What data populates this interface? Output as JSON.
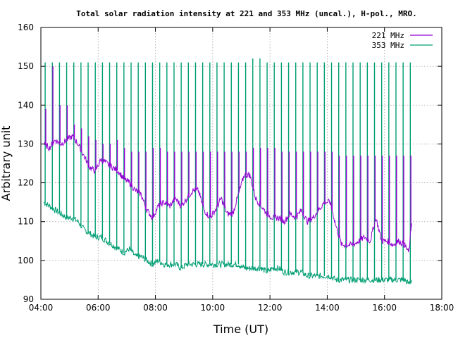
{
  "chart_data": {
    "type": "line",
    "title": "Total solar radiation intensity at 221 and 353 MHz (uncal.), H-pol., MRO.",
    "xlabel": "Time (UT)",
    "ylabel": "Arbitrary unit",
    "xlim": [
      4,
      18
    ],
    "ylim": [
      90,
      160
    ],
    "x_ticks": [
      {
        "value": 4,
        "label": "04:00"
      },
      {
        "value": 6,
        "label": "06:00"
      },
      {
        "value": 8,
        "label": "08:00"
      },
      {
        "value": 10,
        "label": "10:00"
      },
      {
        "value": 12,
        "label": "12:00"
      },
      {
        "value": 14,
        "label": "14:00"
      },
      {
        "value": 16,
        "label": "16:00"
      },
      {
        "value": 18,
        "label": "18:00"
      }
    ],
    "y_ticks": [
      {
        "value": 90,
        "label": "90"
      },
      {
        "value": 100,
        "label": "100"
      },
      {
        "value": 110,
        "label": "110"
      },
      {
        "value": 120,
        "label": "120"
      },
      {
        "value": 130,
        "label": "130"
      },
      {
        "value": 140,
        "label": "140"
      },
      {
        "value": 150,
        "label": "150"
      },
      {
        "value": 160,
        "label": "160"
      }
    ],
    "grid": true,
    "legend_position": "top-right",
    "spike_interval_hours": 0.25,
    "series": [
      {
        "name": "221 MHz",
        "color": "#9400d3",
        "x": [
          4.1,
          4.3,
          4.5,
          4.7,
          4.9,
          5.1,
          5.3,
          5.5,
          5.7,
          5.9,
          6.1,
          6.3,
          6.5,
          6.7,
          6.9,
          7.1,
          7.3,
          7.5,
          7.7,
          7.9,
          8.1,
          8.3,
          8.5,
          8.7,
          8.9,
          9.1,
          9.3,
          9.5,
          9.7,
          9.9,
          10.1,
          10.3,
          10.5,
          10.7,
          10.9,
          11.1,
          11.3,
          11.5,
          11.7,
          11.9,
          12.1,
          12.3,
          12.5,
          12.7,
          12.9,
          13.1,
          13.3,
          13.5,
          13.7,
          13.9,
          14.1,
          14.3,
          14.5,
          14.7,
          14.9,
          15.1,
          15.3,
          15.5,
          15.7,
          15.9,
          16.1,
          16.3,
          16.5,
          16.7,
          16.85,
          16.95
        ],
        "y": [
          130,
          129,
          131,
          130,
          131,
          132,
          130,
          127,
          124,
          123,
          126,
          125,
          124,
          123,
          121,
          120,
          118,
          117,
          113,
          111,
          114,
          115,
          114,
          116,
          114,
          116,
          118,
          118,
          113,
          111,
          113,
          116,
          112,
          112,
          117,
          122,
          122,
          116,
          114,
          112,
          111,
          111,
          110,
          112,
          111,
          113,
          110,
          111,
          113,
          115,
          115,
          109,
          104,
          104,
          104,
          105,
          106,
          105,
          111,
          105,
          105,
          104,
          105,
          104,
          102,
          110
        ],
        "spike_peaks": [
          139,
          150,
          140,
          140,
          135,
          134,
          132,
          131,
          130,
          130,
          131,
          129,
          128,
          128,
          128,
          129,
          129,
          128,
          128,
          128,
          128,
          128,
          128,
          128,
          128,
          128,
          128,
          128,
          128,
          129,
          129,
          129,
          129,
          128,
          128,
          128,
          128,
          128,
          128,
          128,
          128,
          127,
          127,
          127,
          127,
          127,
          127,
          127,
          127,
          127,
          127,
          127,
          127
        ]
      },
      {
        "name": "353 MHz",
        "color": "#009e73",
        "x": [
          4.1,
          4.3,
          4.5,
          4.7,
          4.9,
          5.1,
          5.3,
          5.5,
          5.7,
          5.9,
          6.1,
          6.3,
          6.5,
          6.7,
          6.9,
          7.1,
          7.3,
          7.5,
          7.7,
          7.9,
          8.1,
          8.3,
          8.5,
          8.7,
          8.9,
          9.1,
          9.3,
          9.5,
          9.7,
          9.9,
          10.1,
          10.3,
          10.5,
          10.7,
          10.9,
          11.1,
          11.3,
          11.5,
          11.7,
          11.9,
          12.1,
          12.3,
          12.5,
          12.7,
          12.9,
          13.1,
          13.3,
          13.5,
          13.7,
          13.9,
          14.1,
          14.3,
          14.5,
          14.7,
          14.9,
          15.1,
          15.3,
          15.5,
          15.7,
          15.9,
          16.1,
          16.3,
          16.5,
          16.7,
          16.85,
          16.95
        ],
        "y": [
          115,
          114,
          113,
          112,
          111,
          111,
          110,
          108,
          107,
          106,
          106,
          105,
          104,
          103,
          102,
          103,
          101,
          101,
          100,
          99,
          100,
          99,
          99,
          99,
          98,
          99,
          99,
          99,
          99,
          99,
          99,
          99,
          99,
          99,
          99,
          98,
          98,
          98,
          98,
          97,
          98,
          98,
          97,
          97,
          97,
          97,
          96,
          96,
          96,
          96,
          96,
          95,
          95,
          95,
          95,
          95,
          95,
          95,
          95,
          95,
          95,
          95,
          95,
          95,
          94,
          95
        ],
        "spike_peaks": [
          151,
          151,
          151,
          151,
          151,
          151,
          151,
          151,
          151,
          151,
          151,
          151,
          151,
          151,
          151,
          151,
          151,
          151,
          151,
          151,
          151,
          151,
          151,
          151,
          151,
          151,
          151,
          151,
          151,
          152,
          152,
          151,
          151,
          151,
          151,
          151,
          151,
          151,
          151,
          151,
          151,
          151,
          151,
          151,
          151,
          151,
          151,
          151,
          151,
          151,
          151,
          151,
          151
        ]
      }
    ]
  }
}
